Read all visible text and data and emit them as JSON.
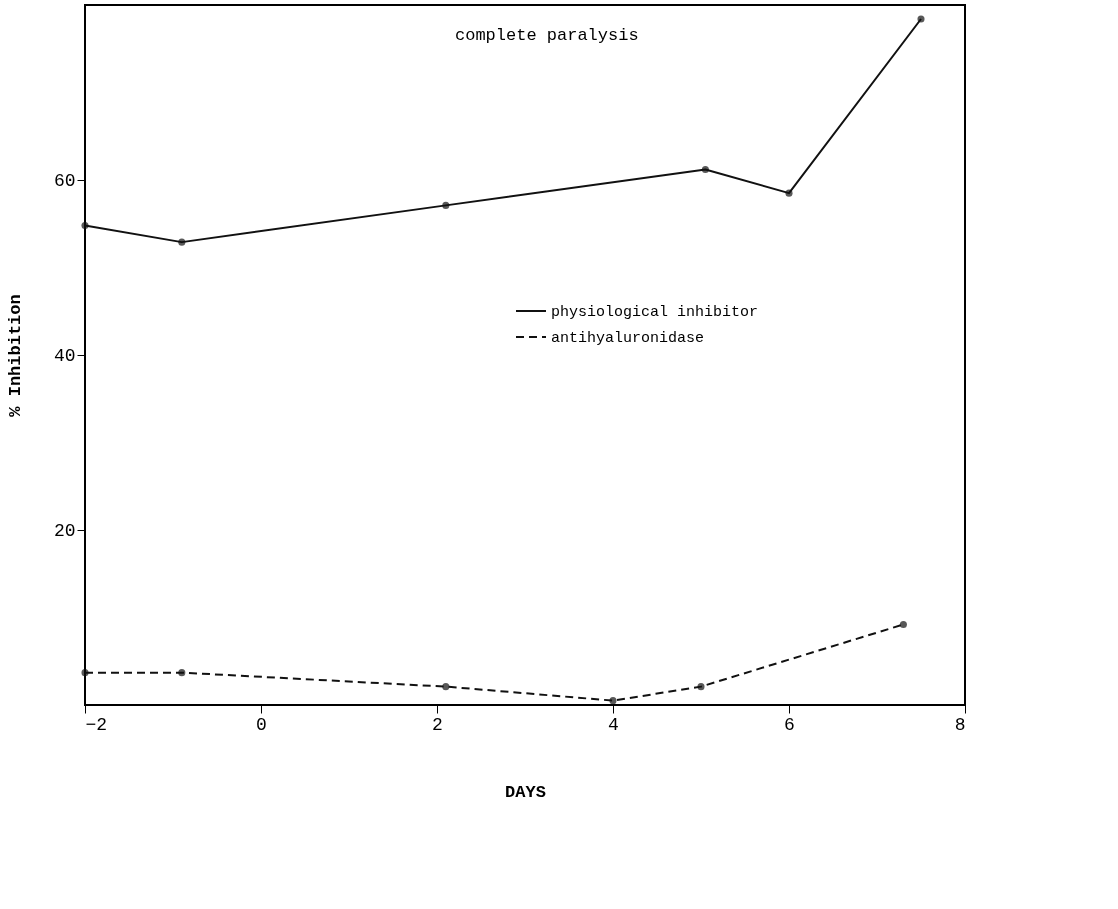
{
  "chart_data": {
    "type": "line",
    "xlabel": "DAYS",
    "ylabel": "% Inhibition",
    "xlim": [
      -2,
      8
    ],
    "xticks": [
      -2,
      0,
      2,
      4,
      6,
      8
    ],
    "ylim": [
      0,
      80
    ],
    "yticks": [
      20,
      40,
      60
    ],
    "grid": false,
    "legend": "right",
    "marker": "circle",
    "series": [
      {
        "name": "physiological inhibitor",
        "color": "#111111",
        "line_style": "solid",
        "x": [
          -2,
          -0.9,
          2.1,
          5.05,
          6.0,
          7.5
        ],
        "values": [
          54.8,
          52.9,
          57.1,
          61.2,
          58.5,
          78.4
        ]
      },
      {
        "name": "antihyaluronidase",
        "color": "#111111",
        "line_style": "dashed",
        "x": [
          -2,
          -0.9,
          2.1,
          4.0,
          5.0,
          7.3
        ],
        "values": [
          3.7,
          3.7,
          2.1,
          0.5,
          2.1,
          9.2
        ]
      }
    ],
    "annotations": [
      "complete paralysis"
    ]
  }
}
